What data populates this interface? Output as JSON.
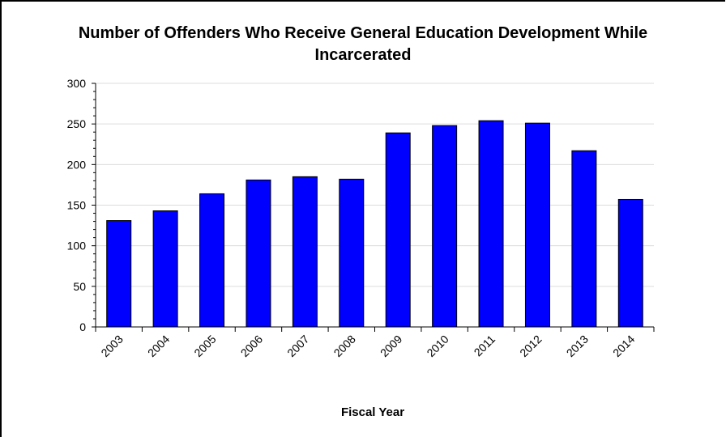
{
  "chart_data": {
    "type": "bar",
    "title_line1": "Number of Offenders Who Receive General Education Development While",
    "title_line2": "Incarcerated",
    "xlabel": "Fiscal Year",
    "ylabel": "",
    "categories": [
      "2003",
      "2004",
      "2005",
      "2006",
      "2007",
      "2008",
      "2009",
      "2010",
      "2011",
      "2012",
      "2013",
      "2014"
    ],
    "values": [
      131,
      143,
      164,
      181,
      185,
      182,
      239,
      248,
      254,
      251,
      217,
      157
    ],
    "ylim": [
      0,
      300
    ],
    "yticks": [
      0,
      50,
      100,
      150,
      200,
      250,
      300
    ],
    "grid": true,
    "bar_color": "#0000ff",
    "grid_color": "#dcdcdc"
  }
}
